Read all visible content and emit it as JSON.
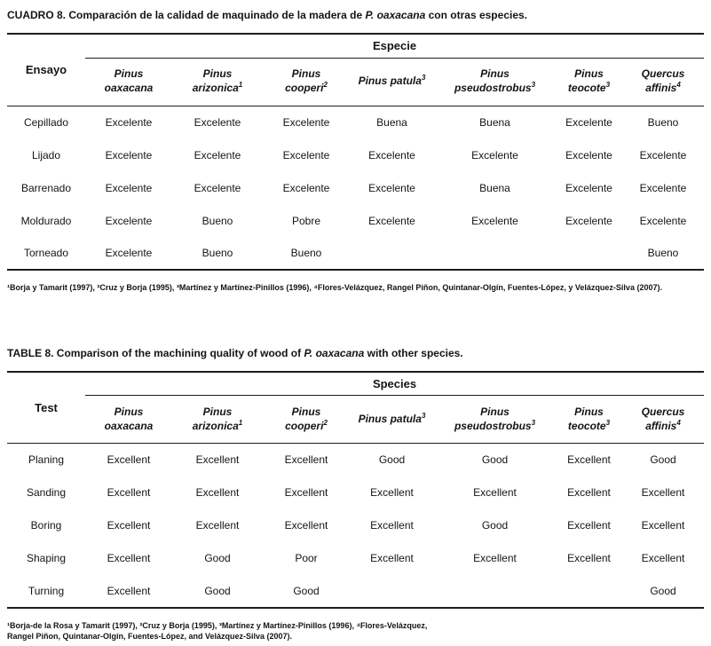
{
  "tables": [
    {
      "caption_label": "CUADRO 8.",
      "caption_pre": " Comparación de la calidad de maquinado de la madera de ",
      "caption_species": "P. oaxacana",
      "caption_post": " con otras especies.",
      "group_header": "Especie",
      "test_header": "Ensayo",
      "species": [
        {
          "line1": "Pinus",
          "sup1": "",
          "line2": "oaxacana",
          "sup2": ""
        },
        {
          "line1": "Pinus",
          "sup1": "",
          "line2": "arizonica",
          "sup2": "1"
        },
        {
          "line1": "Pinus",
          "sup1": "",
          "line2": "cooperi",
          "sup2": "2"
        },
        {
          "line1": "Pinus patula",
          "sup1": "3",
          "line2": "",
          "sup2": ""
        },
        {
          "line1": "Pinus",
          "sup1": "",
          "line2": "pseudostrobus",
          "sup2": "3"
        },
        {
          "line1": "Pinus",
          "sup1": "",
          "line2": "teocote",
          "sup2": "3"
        },
        {
          "line1": "Quercus",
          "sup1": "",
          "line2": "affinis",
          "sup2": "4"
        }
      ],
      "rows": [
        {
          "label": "Cepillado",
          "values": [
            "Excelente",
            "Excelente",
            "Excelente",
            "Buena",
            "Buena",
            "Excelente",
            "Bueno"
          ]
        },
        {
          "label": "Lijado",
          "values": [
            "Excelente",
            "Excelente",
            "Excelente",
            "Excelente",
            "Excelente",
            "Excelente",
            "Excelente"
          ]
        },
        {
          "label": "Barrenado",
          "values": [
            "Excelente",
            "Excelente",
            "Excelente",
            "Excelente",
            "Buena",
            "Excelente",
            "Excelente"
          ]
        },
        {
          "label": "Moldurado",
          "values": [
            "Excelente",
            "Bueno",
            "Pobre",
            "Excelente",
            "Excelente",
            "Excelente",
            "Excelente"
          ]
        },
        {
          "label": "Torneado",
          "values": [
            "Excelente",
            "Bueno",
            "Bueno",
            "",
            "",
            "",
            "Bueno"
          ]
        }
      ],
      "footnote_lines": [
        "¹Borja y Tamarit  (1997), ²Cruz y Borja (1995), ³Martínez y Martínez-Pinillos (1996), ⁴Flores-Velázquez, Rangel Piñon, Quintanar-Olgín, Fuentes-López, y Velázquez-Silva (2007)."
      ]
    },
    {
      "caption_label": "TABLE 8.",
      "caption_pre": " Comparison of the machining quality of wood of ",
      "caption_species": "P. oaxacana",
      "caption_post": " with other species.",
      "group_header": "Species",
      "test_header": "Test",
      "species": [
        {
          "line1": "Pinus",
          "sup1": "",
          "line2": "oaxacana",
          "sup2": ""
        },
        {
          "line1": "Pinus",
          "sup1": "",
          "line2": "arizonica",
          "sup2": "1"
        },
        {
          "line1": "Pinus",
          "sup1": "",
          "line2": "cooperi",
          "sup2": "2"
        },
        {
          "line1": "Pinus patula",
          "sup1": "3",
          "line2": "",
          "sup2": ""
        },
        {
          "line1": "Pinus",
          "sup1": "",
          "line2": "pseudostrobus",
          "sup2": "3"
        },
        {
          "line1": "Pinus",
          "sup1": "",
          "line2": "teocote",
          "sup2": "3"
        },
        {
          "line1": "Quercus",
          "sup1": "",
          "line2": "affinis",
          "sup2": "4"
        }
      ],
      "rows": [
        {
          "label": "Planing",
          "values": [
            "Excellent",
            "Excellent",
            "Excellent",
            "Good",
            "Good",
            "Excellent",
            "Good"
          ]
        },
        {
          "label": "Sanding",
          "values": [
            "Excellent",
            "Excellent",
            "Excellent",
            "Excellent",
            "Excellent",
            "Excellent",
            "Excellent"
          ]
        },
        {
          "label": "Boring",
          "values": [
            "Excellent",
            "Excellent",
            "Excellent",
            "Excellent",
            "Good",
            "Excellent",
            "Excellent"
          ]
        },
        {
          "label": "Shaping",
          "values": [
            "Excellent",
            "Good",
            "Poor",
            "Excellent",
            "Excellent",
            "Excellent",
            "Excellent"
          ]
        },
        {
          "label": "Turning",
          "values": [
            "Excellent",
            "Good",
            "Good",
            "",
            "",
            "",
            "Good"
          ]
        }
      ],
      "footnote_lines": [
        "¹Borja-de la Rosa y Tamarit  (1997), ²Cruz y Borja (1995), ³Martínez y Martínez-Pinillos (1996), ⁴Flores-Velázquez,",
        "Rangel Piñon, Quintanar-Olgín, Fuentes-López, and Velázquez-Silva (2007)."
      ]
    }
  ]
}
